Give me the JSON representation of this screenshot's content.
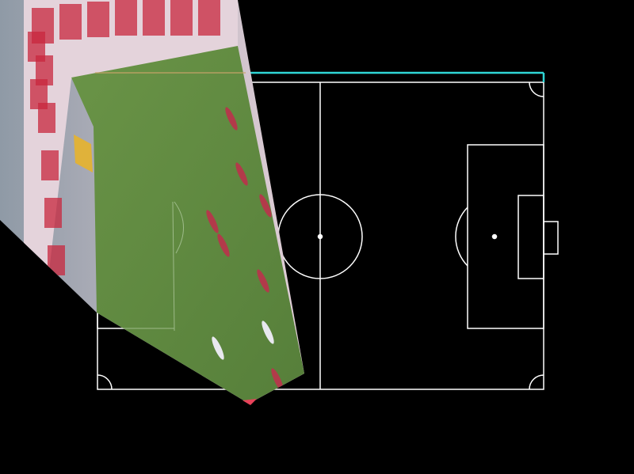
{
  "colors": {
    "background": "#000000",
    "pitch_lines": "#ffffff",
    "highlight_line": "#2fd6d6",
    "grass": "#5f8a3f",
    "grass_dark": "#4d7a35",
    "stands": "#d9c7d0",
    "ad_board": "#c8273d",
    "player_red": "#b23a4a",
    "player_white": "#e8e8ef",
    "corner_marker": "#e8435a"
  },
  "overlay": {
    "description_icon": "warped-broadcast-frame",
    "player_count": 9
  }
}
